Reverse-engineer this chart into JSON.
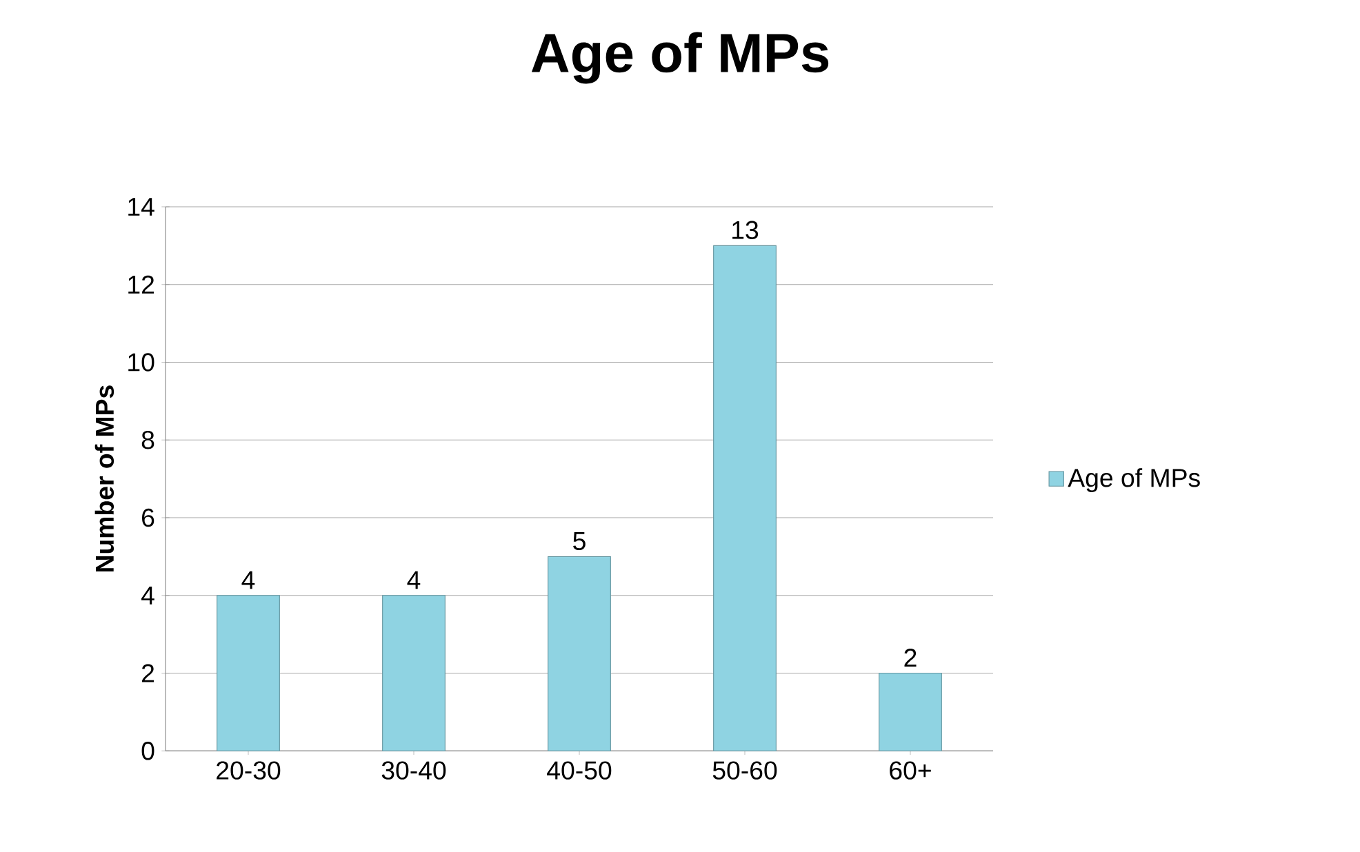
{
  "chart_data": {
    "type": "bar",
    "title": "Age of MPs",
    "ylabel": "Number of MPs",
    "categories": [
      "20-30",
      "30-40",
      "40-50",
      "50-60",
      "60+"
    ],
    "series": [
      {
        "name": "Age of MPs",
        "color": "#8fd3e2",
        "values": [
          4,
          4,
          5,
          13,
          2
        ]
      }
    ],
    "ylim": [
      0,
      14
    ],
    "yticks": [
      0,
      2,
      4,
      6,
      8,
      10,
      12,
      14
    ],
    "grid": "y",
    "legend": "right",
    "data_labels": true
  }
}
